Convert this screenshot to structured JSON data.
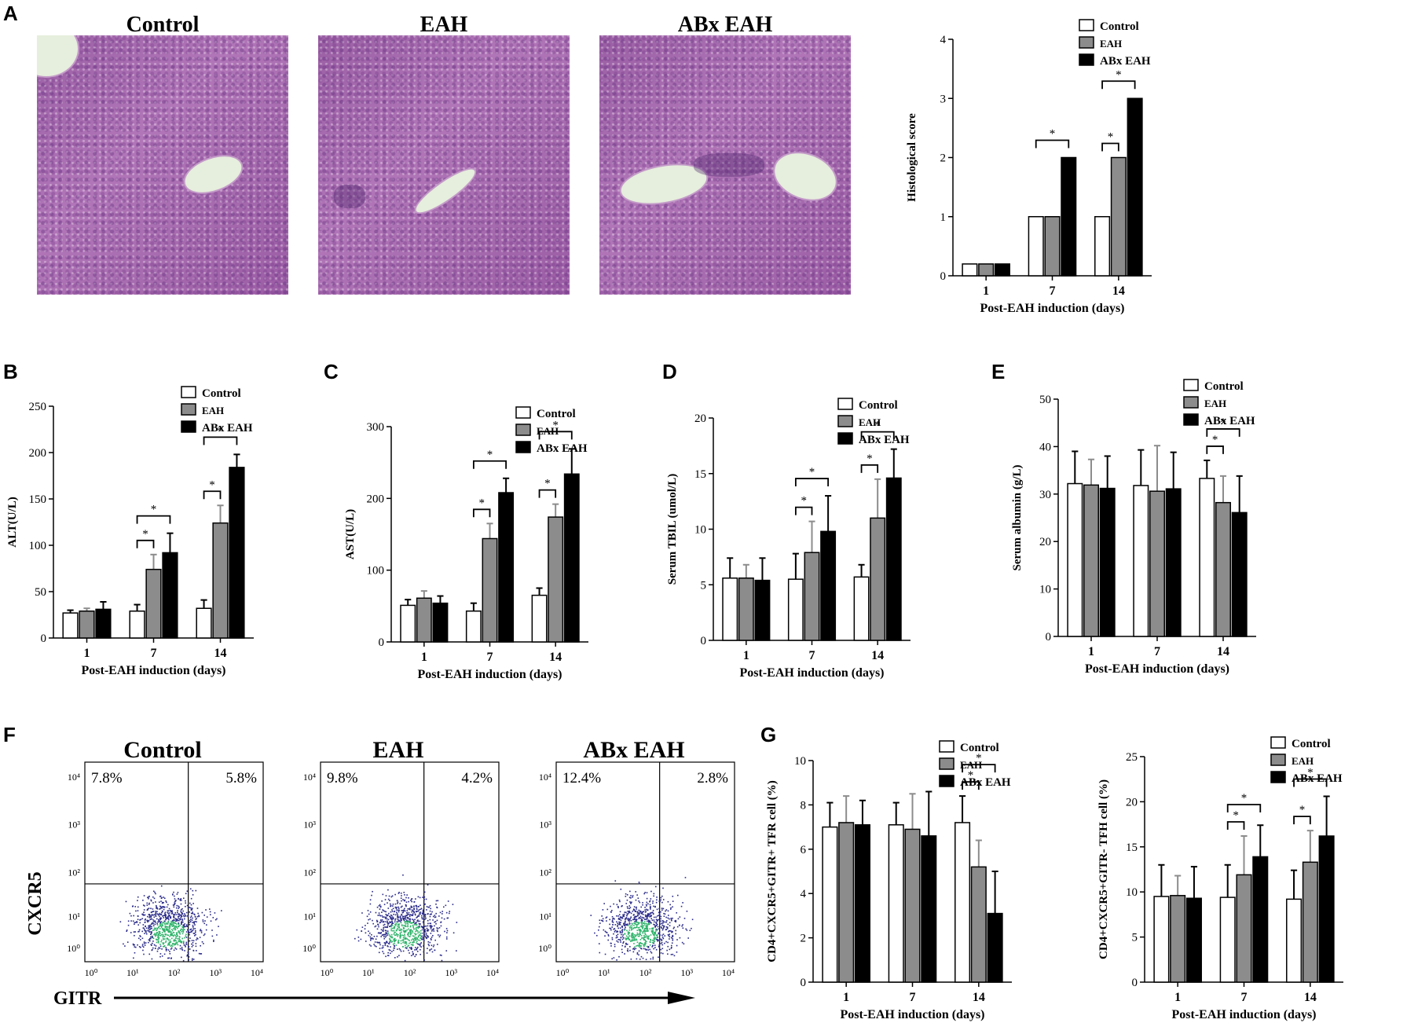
{
  "panel_labels": {
    "A": "A",
    "B": "B",
    "C": "C",
    "D": "D",
    "E": "E",
    "F": "F",
    "G": "G"
  },
  "histology": {
    "titles": [
      "Control",
      "EAH",
      "ABx EAH"
    ]
  },
  "flow": {
    "titles": [
      "Control",
      "EAH",
      "ABx EAH"
    ],
    "ul": [
      "7.8%",
      "9.8%",
      "12.4%"
    ],
    "ur": [
      "5.8%",
      "4.2%",
      "2.8%"
    ],
    "ylabel": "CXCR5",
    "xlabel": "GITR",
    "ticks": [
      "10⁰",
      "10¹",
      "10²",
      "10³",
      "10⁴"
    ]
  },
  "colors": {
    "control": "#ffffff",
    "eah": "#8c8c8c",
    "abx": "#000000",
    "dots": "#2a2a8a",
    "dense": "#2fb36a"
  },
  "chart_data": [
    {
      "id": "A",
      "type": "bar",
      "categories": [
        "1",
        "7",
        "14"
      ],
      "series": [
        {
          "name": "Control",
          "values": [
            0.2,
            1,
            1
          ]
        },
        {
          "name": "EAH",
          "values": [
            0.2,
            1,
            2
          ]
        },
        {
          "name": "ABx EAH",
          "values": [
            0.2,
            2,
            3
          ]
        }
      ],
      "ylabel": "Histological score",
      "xlabel": "Post-EAH induction (days)",
      "ylim": [
        0,
        4
      ],
      "yticks": [
        0,
        1,
        2,
        3,
        4
      ],
      "legend": "top-right"
    },
    {
      "id": "B",
      "type": "bar",
      "categories": [
        "1",
        "7",
        "14"
      ],
      "series": [
        {
          "name": "Control",
          "values": [
            27,
            29,
            32
          ],
          "err": [
            3,
            7,
            9
          ]
        },
        {
          "name": "EAH",
          "values": [
            29,
            74,
            124
          ],
          "err": [
            3,
            16,
            19
          ]
        },
        {
          "name": "ABx EAH",
          "values": [
            31,
            92,
            184
          ],
          "err": [
            8,
            21,
            14
          ]
        }
      ],
      "ylabel": "ALT(U/L)",
      "xlabel": "Post-EAH induction (days)",
      "ylim": [
        0,
        250
      ],
      "yticks": [
        0,
        50,
        100,
        150,
        200,
        250
      ],
      "legend": "top-right"
    },
    {
      "id": "C",
      "type": "bar",
      "categories": [
        "1",
        "7",
        "14"
      ],
      "series": [
        {
          "name": "Control",
          "values": [
            51,
            43,
            65
          ],
          "err": [
            8,
            11,
            10
          ]
        },
        {
          "name": "EAH",
          "values": [
            61,
            144,
            174
          ],
          "err": [
            10,
            21,
            18
          ]
        },
        {
          "name": "ABx EAH",
          "values": [
            54,
            208,
            234
          ],
          "err": [
            10,
            20,
            35
          ]
        }
      ],
      "ylabel": "AST(U/L)",
      "xlabel": "Post-EAH induction (days)",
      "ylim": [
        0,
        300
      ],
      "yticks": [
        0,
        100,
        200,
        300
      ],
      "legend": "top-right"
    },
    {
      "id": "D",
      "type": "bar",
      "categories": [
        "1",
        "7",
        "14"
      ],
      "series": [
        {
          "name": "Control",
          "values": [
            5.6,
            5.5,
            5.7
          ],
          "err": [
            1.8,
            2.3,
            1.1
          ]
        },
        {
          "name": "EAH",
          "values": [
            5.6,
            7.9,
            11
          ],
          "err": [
            1.2,
            2.8,
            3.5
          ]
        },
        {
          "name": "ABx EAH",
          "values": [
            5.4,
            9.8,
            14.6
          ],
          "err": [
            2,
            3.2,
            2.6
          ]
        }
      ],
      "ylabel": "Serum TBIL (umol/L)",
      "xlabel": "Post-EAH induction (days)",
      "ylim": [
        0,
        20
      ],
      "yticks": [
        0,
        5,
        10,
        15,
        20
      ],
      "legend": "top-right"
    },
    {
      "id": "E",
      "type": "bar",
      "categories": [
        "1",
        "7",
        "14"
      ],
      "series": [
        {
          "name": "Control",
          "values": [
            32.2,
            31.8,
            33.3
          ],
          "err": [
            6.8,
            7.5,
            3.8
          ]
        },
        {
          "name": "EAH",
          "values": [
            31.9,
            30.6,
            28.2
          ],
          "err": [
            5.4,
            9.6,
            5.6
          ]
        },
        {
          "name": "ABx EAH",
          "values": [
            31.2,
            31.1,
            26.1
          ],
          "err": [
            6.8,
            7.7,
            7.7
          ]
        }
      ],
      "ylabel": "Serum albumin (g/L)",
      "xlabel": "Post-EAH induction (days)",
      "ylim": [
        0,
        50
      ],
      "yticks": [
        0,
        10,
        20,
        30,
        40,
        50
      ],
      "legend": "top-right"
    },
    {
      "id": "G1",
      "type": "bar",
      "categories": [
        "1",
        "7",
        "14"
      ],
      "series": [
        {
          "name": "Control",
          "values": [
            7,
            7.1,
            7.2
          ],
          "err": [
            1.1,
            1.0,
            1.2
          ]
        },
        {
          "name": "EAH",
          "values": [
            7.2,
            6.9,
            5.2
          ],
          "err": [
            1.2,
            1.6,
            1.2
          ]
        },
        {
          "name": "ABx EAH",
          "values": [
            7.1,
            6.6,
            3.1
          ],
          "err": [
            1.1,
            2.0,
            1.9
          ]
        }
      ],
      "ylabel": "CD4+CXCR5+GITR+ TFR cell (%)",
      "xlabel": "Post-EAH induction (days)",
      "ylim": [
        0,
        10
      ],
      "yticks": [
        0,
        2,
        4,
        6,
        8,
        10
      ],
      "legend": "top-right"
    },
    {
      "id": "G2",
      "type": "bar",
      "categories": [
        "1",
        "7",
        "14"
      ],
      "series": [
        {
          "name": "Control",
          "values": [
            9.5,
            9.4,
            9.2
          ],
          "err": [
            3.5,
            3.6,
            3.2
          ]
        },
        {
          "name": "EAH",
          "values": [
            9.6,
            11.9,
            13.3
          ],
          "err": [
            2.2,
            4.3,
            3.5
          ]
        },
        {
          "name": "ABx EAH",
          "values": [
            9.3,
            13.9,
            16.2
          ],
          "err": [
            3.5,
            3.5,
            4.4
          ]
        }
      ],
      "ylabel": "CD4+CXCR5+GITR- TFH cell (%)",
      "xlabel": "Post-EAH induction (days)",
      "ylim": [
        0,
        25
      ],
      "yticks": [
        0,
        5,
        10,
        15,
        20,
        25
      ],
      "legend": "top-right"
    }
  ],
  "significance": {
    "mark": "*"
  }
}
